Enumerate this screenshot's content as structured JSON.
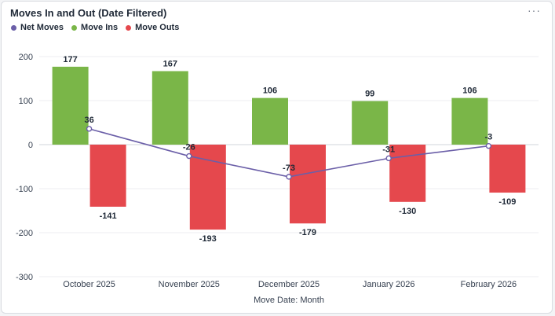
{
  "title": "Moves In and Out (Date Filtered)",
  "more_icon": "more-horizontal-icon",
  "more_glyph": "···",
  "colors": {
    "net": "#6b5fa8",
    "ins": "#7ab648",
    "outs": "#e5484d"
  },
  "legend": [
    {
      "label": "Net Moves",
      "color": "#6b5fa8"
    },
    {
      "label": "Move Ins",
      "color": "#7ab648"
    },
    {
      "label": "Move Outs",
      "color": "#e5484d"
    }
  ],
  "chart_data": {
    "type": "bar",
    "categories": [
      "October 2025",
      "November 2025",
      "December 2025",
      "January 2026",
      "February 2026"
    ],
    "series": [
      {
        "name": "Move Ins",
        "type": "bar",
        "values": [
          177,
          167,
          106,
          99,
          106
        ]
      },
      {
        "name": "Move Outs",
        "type": "bar",
        "values": [
          -141,
          -193,
          -179,
          -130,
          -109
        ]
      },
      {
        "name": "Net Moves",
        "type": "line",
        "values": [
          36,
          -26,
          -73,
          -31,
          -3
        ]
      }
    ],
    "xlabel": "Move Date: Month",
    "ylabel": "",
    "ylim": [
      -300,
      200
    ],
    "yticks": [
      200,
      100,
      0,
      -100,
      -200,
      -300
    ],
    "grid": true,
    "legend_position": "top-left"
  }
}
